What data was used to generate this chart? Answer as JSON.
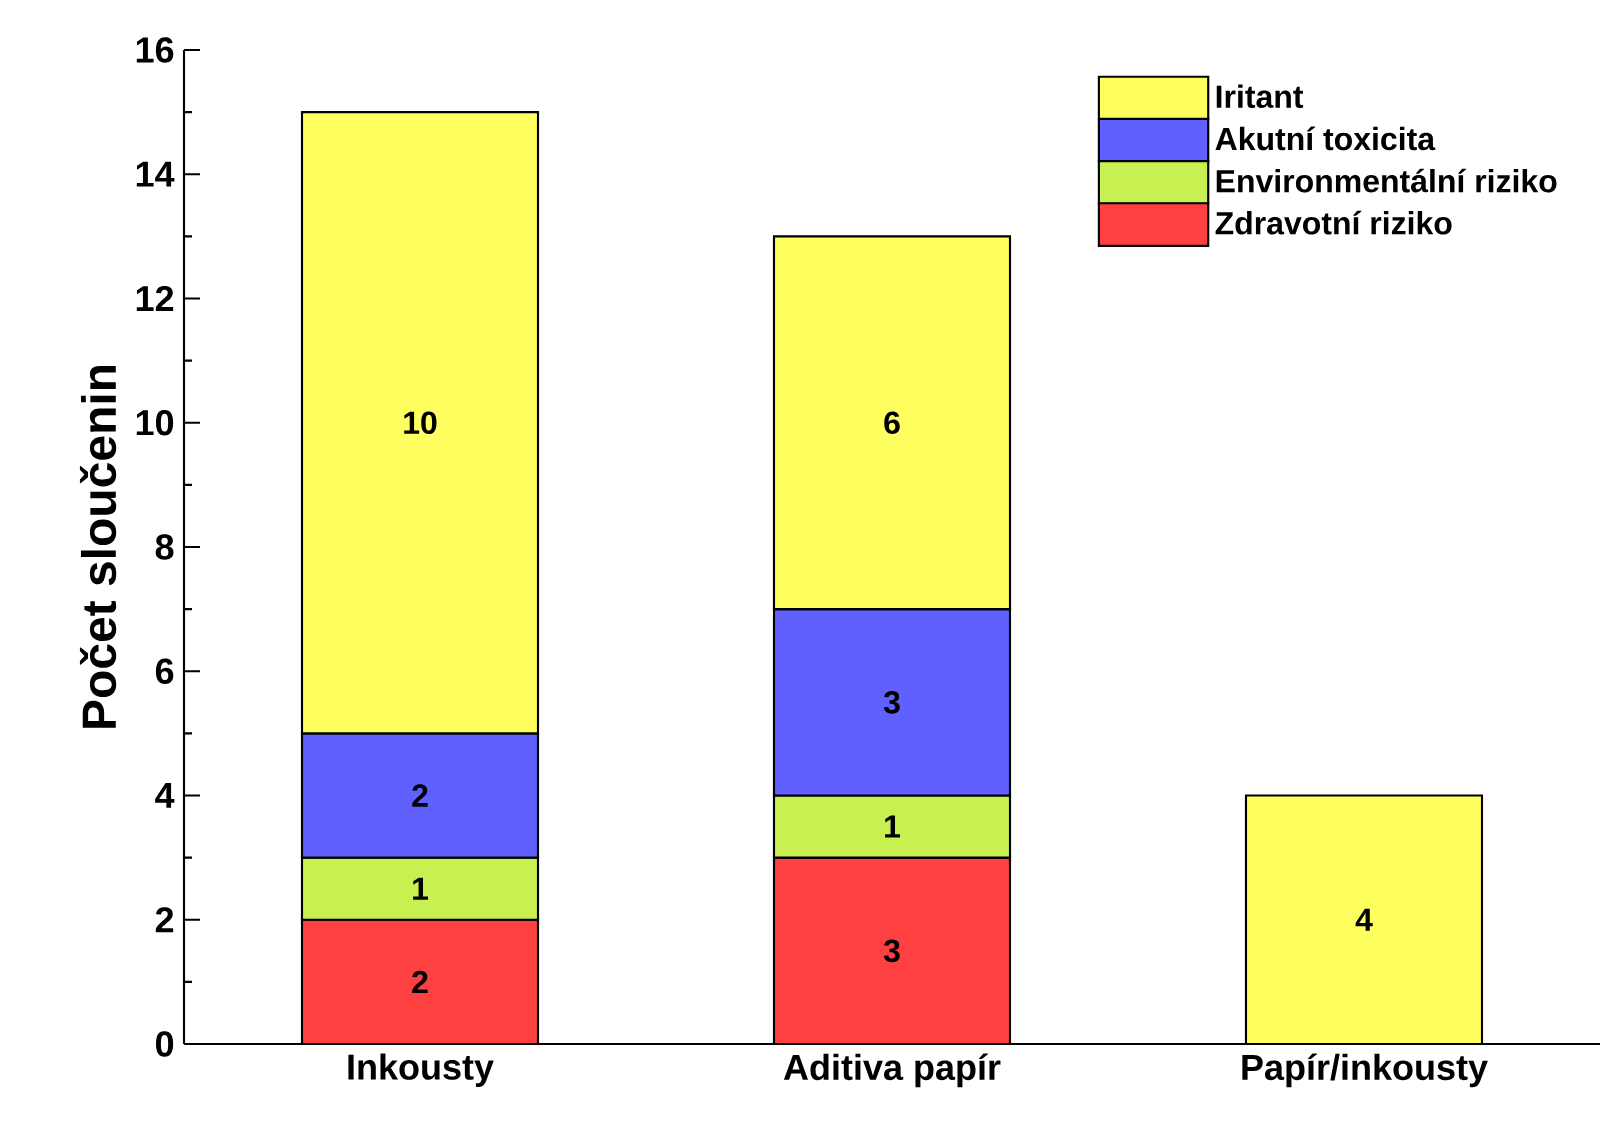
{
  "chart_data": {
    "type": "bar",
    "stacked": true,
    "ylabel": "Počet sloučenin",
    "categories": [
      "Inkousty",
      "Aditiva papír",
      "Papír/inkousty"
    ],
    "series": [
      {
        "name": "Zdravotní riziko",
        "color": "#ff4040",
        "values": [
          2,
          3,
          null
        ]
      },
      {
        "name": "Environmentální riziko",
        "color": "#c8f050",
        "values": [
          1,
          1,
          null
        ]
      },
      {
        "name": "Akutní toxicita",
        "color": "#6060ff",
        "values": [
          2,
          3,
          null
        ]
      },
      {
        "name": "Iritant",
        "color": "#ffff60",
        "values": [
          10,
          6,
          4
        ]
      }
    ],
    "ylim": [
      0,
      16
    ],
    "yticks": [
      0,
      2,
      4,
      6,
      8,
      10,
      12,
      14,
      16
    ],
    "data_labels": true,
    "legend": "top right",
    "grid": false
  }
}
